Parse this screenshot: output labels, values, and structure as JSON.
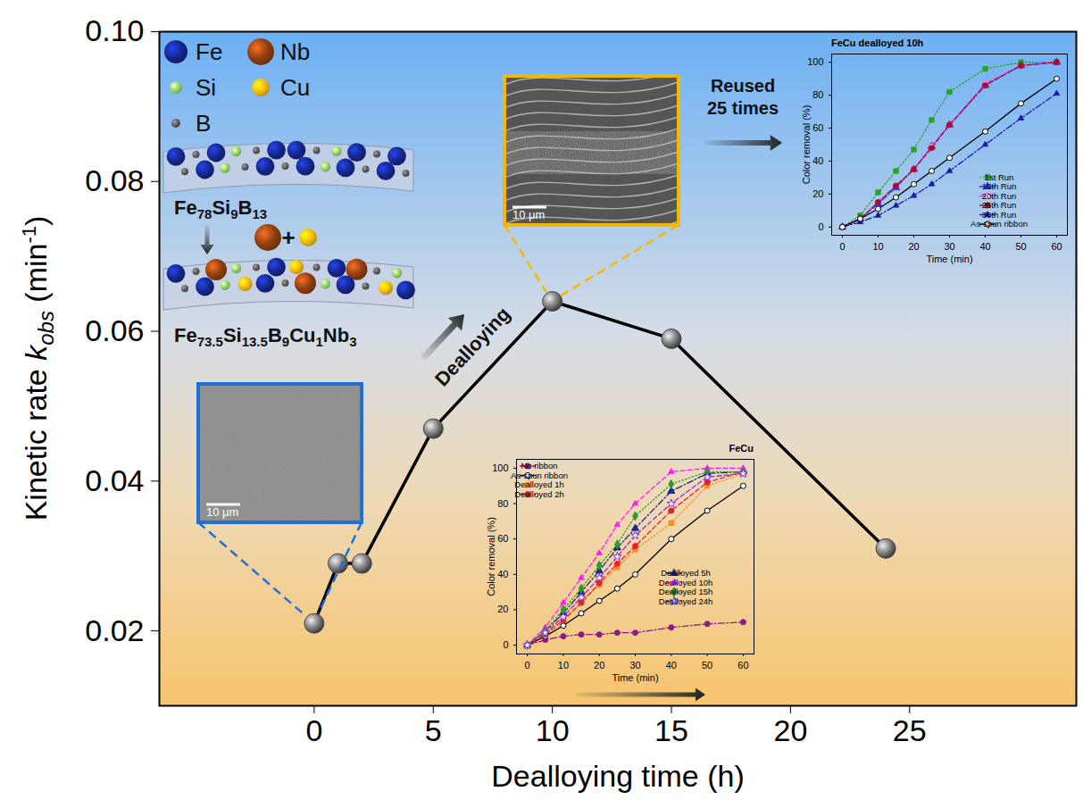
{
  "chart_data": [
    {
      "type": "line",
      "x_label": "Dealloying time (h)",
      "y_label": [
        {
          "text": "Kinetic rate "
        },
        {
          "italic": "k"
        },
        {
          "sub": "obs"
        },
        {
          "text": " (min"
        },
        {
          "sup": "-1"
        },
        {
          "text": ")"
        }
      ],
      "x": [
        0,
        1,
        2,
        5,
        10,
        15,
        24
      ],
      "values": [
        0.021,
        0.029,
        0.029,
        0.047,
        0.064,
        0.059,
        0.031
      ],
      "color": "#000000",
      "marker": "circle",
      "xlim": [
        -6.5,
        32
      ],
      "xticks": [
        0,
        5,
        10,
        15,
        20,
        25
      ],
      "ylim": [
        0.01,
        0.1
      ],
      "yticks": [
        0.02,
        0.04,
        0.06,
        0.08,
        {
          "value": 0.1,
          "label": "0.10"
        }
      ],
      "grid": false
    },
    {
      "type": "line",
      "title": "FeCu dealloyed 10h",
      "x_label": "Time (min)",
      "y_label": "Color removal (%)",
      "x": [
        0,
        5,
        10,
        15,
        20,
        25,
        30,
        40,
        50,
        60
      ],
      "series": [
        {
          "name": "1st Run",
          "color": "#2ca02c",
          "marker": "square",
          "line_style": "dotted",
          "values": [
            0,
            7,
            21,
            34,
            47,
            65,
            82,
            96,
            100,
            100
          ]
        },
        {
          "name": "10th Run",
          "color": "#2233ee",
          "marker": "triangle",
          "line_style": "dashdot",
          "values": [
            0,
            5,
            14,
            24,
            35,
            49,
            62,
            86,
            98,
            100
          ]
        },
        {
          "name": "20th Run",
          "color": "#ff33cc",
          "marker": "circle-open",
          "line_style": "longdash",
          "values": [
            0,
            5,
            15,
            25,
            35,
            49,
            62,
            87,
            98,
            100
          ]
        },
        {
          "name": "25th Run",
          "color": "#a01030",
          "marker": "circle",
          "line_style": "dashed",
          "values": [
            0,
            5,
            15,
            25,
            35,
            48,
            62,
            86,
            98,
            100
          ]
        },
        {
          "name": "30th Run",
          "color": "#1a1aa8",
          "marker": "triangle2",
          "line_style": "dashdot",
          "values": [
            0,
            3,
            7,
            13,
            19,
            26,
            34,
            50,
            66,
            81
          ]
        },
        {
          "name": "As-spun ribbon",
          "color": "#000000",
          "marker": "circle-open",
          "line_style": "solid",
          "values": [
            0,
            5,
            11,
            18,
            26,
            34,
            42,
            58,
            75,
            90
          ]
        }
      ],
      "xlim": [
        -3,
        63
      ],
      "xticks": [
        0,
        10,
        20,
        30,
        40,
        50,
        60
      ],
      "ylim": [
        -5,
        105
      ],
      "yticks": [
        0,
        20,
        40,
        60,
        80,
        100
      ],
      "legend": "bottom-right",
      "grid": false
    },
    {
      "type": "line",
      "title": "FeCu",
      "x_label": "Time (min)",
      "y_label": "Color removal (%)",
      "x": [
        0,
        5,
        10,
        15,
        20,
        25,
        30,
        40,
        50,
        60
      ],
      "series": [
        {
          "name": "No ribbon",
          "color": "#8b1a8b",
          "marker": "circle",
          "line_style": "dashdot",
          "values": [
            0,
            3,
            5,
            6,
            6,
            7,
            7,
            10,
            12,
            13
          ]
        },
        {
          "name": "As-spun ribbon",
          "color": "#000000",
          "marker": "circle-open",
          "line_style": "solid",
          "values": [
            0,
            5,
            11,
            18,
            25,
            32,
            40,
            60,
            76,
            90
          ]
        },
        {
          "name": "Dealloyed 1h",
          "color": "#ff8c1a",
          "marker": "square",
          "line_style": "dotted",
          "values": [
            0,
            6,
            14,
            24,
            34,
            44,
            54,
            69,
            90,
            97
          ]
        },
        {
          "name": "Dealloyed 2h",
          "color": "#e8202a",
          "marker": "circle",
          "line_style": "dashed",
          "values": [
            0,
            6,
            14,
            24,
            35,
            46,
            56,
            76,
            92,
            98
          ]
        },
        {
          "name": "Dealloyed 5h",
          "color": "#1a2a8c",
          "marker": "triangle",
          "line_style": "dashdot",
          "values": [
            0,
            8,
            18,
            30,
            42,
            55,
            66,
            87,
            97,
            98
          ]
        },
        {
          "name": "Dealloyed 10h",
          "color": "#ff1aff",
          "marker": "triangle2",
          "line_style": "dashed",
          "values": [
            0,
            10,
            24,
            38,
            52,
            68,
            80,
            98,
            100,
            100
          ]
        },
        {
          "name": "Dealloyed 15h",
          "color": "#2a9a2a",
          "marker": "diamond",
          "line_style": "dotted",
          "values": [
            0,
            8,
            20,
            32,
            45,
            57,
            73,
            91,
            98,
            98
          ]
        },
        {
          "name": "Dealloyed 24h",
          "color": "#8a2be2",
          "marker": "star-open",
          "line_style": "dashed",
          "values": [
            0,
            7,
            16,
            27,
            38,
            50,
            62,
            80,
            95,
            97
          ]
        }
      ],
      "xlim": [
        -3,
        63
      ],
      "xticks": [
        0,
        10,
        20,
        30,
        40,
        50,
        60
      ],
      "ylim": [
        -5,
        105
      ],
      "yticks": [
        0,
        20,
        40,
        60,
        80,
        100
      ],
      "legend": "split",
      "grid": false
    }
  ],
  "schematic": {
    "elements": [
      {
        "symbol": "Fe",
        "color": "#15278a"
      },
      {
        "symbol": "Nb",
        "color": "#8e3f12"
      },
      {
        "symbol": "Si",
        "color": "#8fd46a"
      },
      {
        "symbol": "Cu",
        "color": "#f2b90f"
      },
      {
        "symbol": "B",
        "color": "#5a5a5a"
      }
    ],
    "formula_before": "Fe78Si9B13",
    "added": "+",
    "formula_after": "Fe73.5Si13.5B9Cu1Nb3",
    "process": "Dealloying",
    "reuse": [
      "Reused",
      "25 times"
    ],
    "micrographs": [
      {
        "dealloying_time": 0,
        "color": "#1f6fd6",
        "scale_bar": "10 μm"
      },
      {
        "dealloying_time": 10,
        "color": "#f5b700",
        "scale_bar": "10 μm"
      }
    ]
  }
}
